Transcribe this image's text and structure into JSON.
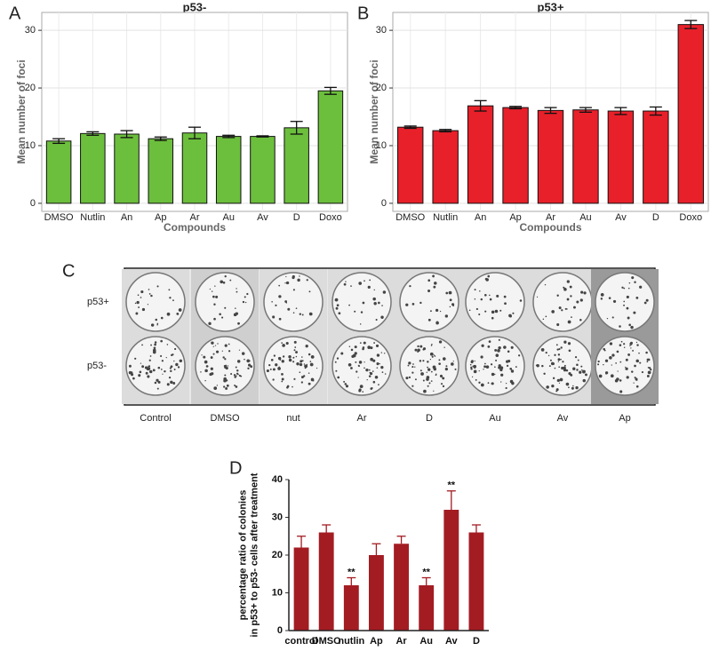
{
  "chart_data": [
    {
      "type": "bar",
      "panel": "A",
      "title": "p53-",
      "xlabel": "Compounds",
      "ylabel": [
        "Mean number of foci"
      ],
      "categories": [
        "DMSO",
        "Nutlin",
        "An",
        "Ap",
        "Ar",
        "Au",
        "Av",
        "D",
        "Doxo"
      ],
      "values": [
        10.8,
        12.1,
        12.0,
        11.2,
        12.2,
        11.6,
        11.6,
        13.1,
        19.5
      ],
      "errors": [
        0.4,
        0.3,
        0.6,
        0.3,
        1.0,
        0.2,
        0.1,
        1.1,
        0.6
      ],
      "color": "#6cbf3c",
      "ylim": [
        -1.4,
        33.1
      ],
      "yticks": [
        0,
        10,
        20,
        30
      ],
      "grid": true
    },
    {
      "type": "bar",
      "panel": "B",
      "title": "p53+",
      "xlabel": "Compounds",
      "ylabel": [
        "Mean number of foci"
      ],
      "categories": [
        "DMSO",
        "Nutlin",
        "An",
        "Ap",
        "Ar",
        "Au",
        "Av",
        "D",
        "Doxo"
      ],
      "values": [
        13.2,
        12.6,
        16.9,
        16.6,
        16.1,
        16.2,
        16.0,
        16.0,
        31.0
      ],
      "errors": [
        0.2,
        0.2,
        0.9,
        0.2,
        0.5,
        0.4,
        0.6,
        0.7,
        0.7
      ],
      "color": "#e8202a",
      "ylim": [
        -1.4,
        33.1
      ],
      "yticks": [
        0,
        10,
        20,
        30
      ],
      "grid": true
    },
    {
      "type": "bar",
      "panel": "D",
      "ylabel": [
        "percentage ratio of colonies",
        "in p53+ to p53- cells after treatment"
      ],
      "categories": [
        "control",
        "DMSO",
        "nutlin",
        "Ap",
        "Ar",
        "Au",
        "Av",
        "D"
      ],
      "values": [
        22,
        26,
        12,
        20,
        23,
        12,
        32,
        26
      ],
      "errors": [
        3,
        2,
        2,
        3,
        2,
        2,
        5,
        2
      ],
      "annotations": [
        {
          "category": "nutlin",
          "text": "**"
        },
        {
          "category": "Au",
          "text": "**"
        },
        {
          "category": "Av",
          "text": "**"
        }
      ],
      "color": "#a31c22",
      "ylim": [
        0,
        40
      ],
      "yticks": [
        0,
        10,
        20,
        30,
        40
      ],
      "grid": false
    }
  ],
  "panel_c": {
    "panel": "C",
    "rows": [
      "p53+",
      "p53-"
    ],
    "columns": [
      "Control",
      "DMSO",
      "nut",
      "Ar",
      "D",
      "Au",
      "Av",
      "Ap"
    ]
  }
}
